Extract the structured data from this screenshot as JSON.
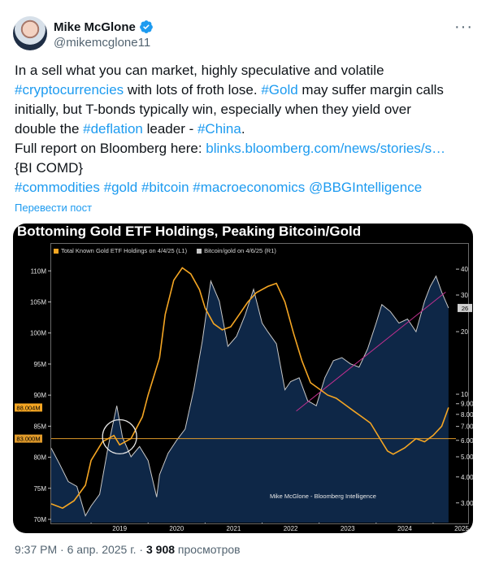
{
  "author": {
    "name": "Mike McGlone",
    "handle": "@mikemcglone11",
    "more_label": "···"
  },
  "tweet": {
    "lines": [
      [
        {
          "t": "In a  sell what you can market, highly speculative and volatile",
          "link": false
        }
      ],
      [
        {
          "t": "#cryptocurrencies",
          "link": true
        },
        {
          "t": " with lots of froth lose. ",
          "link": false
        },
        {
          "t": "#Gold",
          "link": true
        },
        {
          "t": " may suffer margin calls",
          "link": false
        }
      ],
      [
        {
          "t": "initially, but T-bonds typically win, especially when they yield over",
          "link": false
        }
      ],
      [
        {
          "t": "double the ",
          "link": false
        },
        {
          "t": "#deflation",
          "link": true
        },
        {
          "t": " leader - ",
          "link": false
        },
        {
          "t": "#China",
          "link": true
        },
        {
          "t": ".",
          "link": false
        }
      ],
      [
        {
          "t": "Full report on Bloomberg here: ",
          "link": false
        },
        {
          "t": "blinks.bloomberg.com/news/stories/s…",
          "link": true
        }
      ],
      [
        {
          "t": "{BI COMD}",
          "link": false
        }
      ],
      [
        {
          "t": "#commodities",
          "link": true
        },
        {
          "t": " ",
          "link": false
        },
        {
          "t": "#gold",
          "link": true
        },
        {
          "t": " ",
          "link": false
        },
        {
          "t": "#bitcoin",
          "link": true
        },
        {
          "t": " ",
          "link": false
        },
        {
          "t": "#macroeconomics",
          "link": true
        },
        {
          "t": " ",
          "link": false
        },
        {
          "t": "@BBGIntelligence",
          "link": true
        }
      ]
    ],
    "translate_label": "Перевести пост"
  },
  "chart_data": {
    "type": "line",
    "title": "Bottoming Gold ETF Holdings, Peaking Bitcoin/Gold",
    "credit": "Mike McGlone - Bloomberg Intelligence",
    "x_ticks": [
      "2019",
      "2020",
      "2021",
      "2022",
      "2023",
      "2024",
      "2025"
    ],
    "left_axis": {
      "ticks": [
        "70M",
        "75M",
        "80M",
        "85M",
        "90M",
        "95M",
        "100M",
        "105M",
        "110M"
      ],
      "ylim": [
        70,
        112
      ]
    },
    "right_axis": {
      "ticks": [
        "3.00",
        "4.00",
        "5.00",
        "6.00",
        "7.00",
        "8.00",
        "9.00",
        "10",
        "20",
        "30",
        "40"
      ],
      "ylim": [
        2.5,
        45
      ],
      "scale": "log"
    },
    "value_labels": {
      "gold_last": "88.004M",
      "ref_level": "83.000M",
      "btc_last": "26"
    },
    "reference_line": {
      "value": 83.0,
      "axis": "left"
    },
    "series": [
      {
        "name": "Total Known Gold ETF Holdings on 4/4/25 (L1)",
        "axis": "left",
        "color": "#f5a623",
        "x": [
          2018.3,
          2018.5,
          2018.7,
          2018.9,
          2019.0,
          2019.2,
          2019.4,
          2019.5,
          2019.7,
          2019.9,
          2020.0,
          2020.2,
          2020.3,
          2020.45,
          2020.6,
          2020.75,
          2020.9,
          2021.0,
          2021.15,
          2021.3,
          2021.45,
          2021.6,
          2021.75,
          2021.9,
          2022.1,
          2022.25,
          2022.4,
          2022.55,
          2022.7,
          2022.85,
          2023.0,
          2023.15,
          2023.3,
          2023.45,
          2023.6,
          2023.75,
          2023.9,
          2024.1,
          2024.2,
          2024.3,
          2024.5,
          2024.7,
          2024.85,
          2025.0,
          2025.15,
          2025.27
        ],
        "values": [
          72.5,
          71.8,
          73.0,
          75.5,
          79.5,
          82.5,
          83.5,
          82.0,
          83.0,
          86.5,
          90.0,
          96.0,
          103.0,
          108.5,
          110.5,
          109.5,
          107.0,
          104.0,
          101.5,
          100.5,
          101.0,
          103.0,
          105.0,
          106.5,
          107.5,
          108.0,
          105.0,
          100.0,
          95.5,
          92.0,
          91.0,
          90.0,
          89.5,
          88.5,
          87.5,
          86.5,
          85.5,
          82.5,
          81.0,
          80.5,
          81.5,
          83.0,
          82.5,
          83.5,
          85.0,
          88.0
        ]
      },
      {
        "name": "Bitcoin/gold on 4/6/25 (R1)",
        "axis": "right",
        "color": "#c8c8c8",
        "x": [
          2018.3,
          2018.45,
          2018.6,
          2018.75,
          2018.9,
          2019.0,
          2019.15,
          2019.3,
          2019.45,
          2019.55,
          2019.7,
          2019.85,
          2020.0,
          2020.15,
          2020.2,
          2020.35,
          2020.5,
          2020.65,
          2020.8,
          2020.95,
          2021.1,
          2021.25,
          2021.4,
          2021.55,
          2021.7,
          2021.85,
          2022.0,
          2022.1,
          2022.25,
          2022.4,
          2022.5,
          2022.65,
          2022.8,
          2022.95,
          2023.1,
          2023.25,
          2023.4,
          2023.55,
          2023.7,
          2023.85,
          2024.0,
          2024.1,
          2024.25,
          2024.4,
          2024.55,
          2024.7,
          2024.85,
          2024.95,
          2025.05,
          2025.15,
          2025.27
        ],
        "values": [
          5.5,
          4.6,
          3.8,
          3.6,
          2.6,
          2.9,
          3.3,
          5.6,
          8.8,
          6.2,
          5.0,
          5.6,
          4.8,
          3.2,
          4.1,
          5.2,
          6.0,
          6.8,
          10.5,
          18.0,
          35.0,
          28.0,
          17.0,
          19.0,
          24.0,
          32.0,
          22.0,
          20.0,
          17.5,
          10.5,
          11.5,
          12.0,
          9.3,
          8.8,
          12.0,
          14.5,
          15.0,
          14.0,
          13.5,
          16.5,
          22.0,
          27.0,
          25.0,
          22.0,
          23.0,
          20.0,
          28.0,
          33.0,
          37.0,
          31.0,
          26.0
        ]
      }
    ]
  },
  "footer": {
    "time": "9:37 PM",
    "date": "6 апр. 2025 г.",
    "views_count": "3 908",
    "views_label": "просмотров"
  }
}
